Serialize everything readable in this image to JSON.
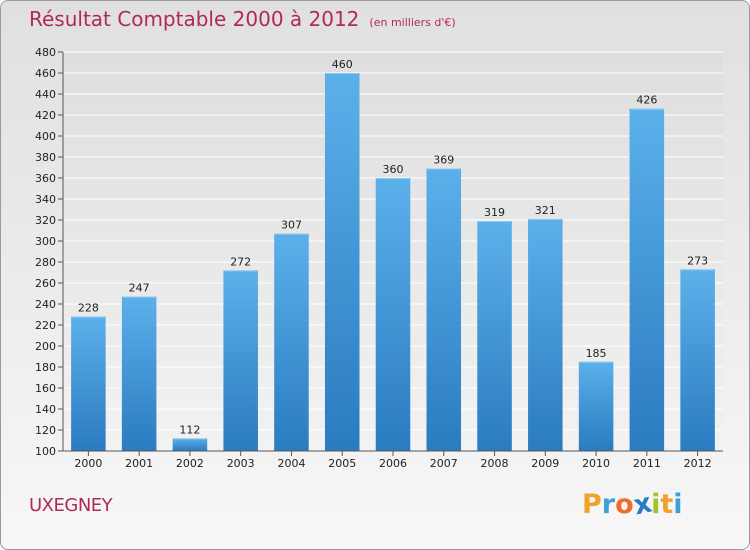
{
  "chart_data": {
    "type": "bar",
    "title": "Résultat Comptable 2000 à 2012",
    "subtitle": "(en milliers d'€)",
    "categories": [
      "2000",
      "2001",
      "2002",
      "2003",
      "2004",
      "2005",
      "2006",
      "2007",
      "2008",
      "2009",
      "2010",
      "2011",
      "2012"
    ],
    "values": [
      228,
      247,
      112,
      272,
      307,
      460,
      360,
      369,
      319,
      321,
      185,
      426,
      273
    ],
    "ylim": [
      100,
      480
    ],
    "yticks": [
      100,
      120,
      140,
      160,
      180,
      200,
      220,
      240,
      260,
      280,
      300,
      320,
      340,
      360,
      380,
      400,
      420,
      440,
      460,
      480
    ],
    "grid": true,
    "bar_color": "#3b8fd6"
  },
  "commune": "UXEGNEY",
  "brand": {
    "text": "Proxiti",
    "letters": [
      "P",
      "r",
      "o",
      "x",
      "i",
      "t",
      "i"
    ],
    "colors": [
      "#f0a32a",
      "#3f9fd8",
      "#ef6d2a",
      "#2a7bc3",
      "#9cc52e",
      "#f0a32a",
      "#3f9fd8"
    ]
  }
}
